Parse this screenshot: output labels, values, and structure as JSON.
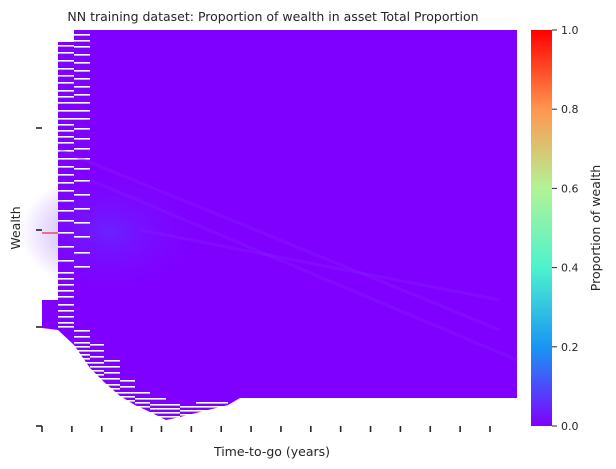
{
  "chart_data": {
    "type": "heatmap",
    "title": "NN training dataset: Proportion of wealth in asset Total Proportion",
    "xlabel": "Time-to-go (years)",
    "ylabel": "Wealth",
    "colorbar": {
      "label": "Proportion of wealth",
      "ticks": [
        "0.0",
        "0.2",
        "0.4",
        "0.6",
        "0.8",
        "1.0"
      ],
      "range": [
        0,
        1
      ],
      "colormap": "rainbow"
    },
    "value_range_observed": [
      0.0,
      0.1
    ],
    "dominant_value": 0.0,
    "x_tick_count": 16,
    "y_tick_count": 4,
    "tick_labels_shown": false,
    "notes_shape": "Filled region bounded below by a boundary that rises from the lower-left to the lower-right; sparse rows near the left edge at top and bottom"
  },
  "colors": {
    "cmap_0.0": "#8000ff",
    "cmap_0.2": "#1996f3",
    "cmap_0.4": "#4df3ce",
    "cmap_0.6": "#b2f396",
    "cmap_0.8": "#ff964f",
    "cmap_1.0": "#ff0000",
    "highlight_row": "#e03030"
  }
}
